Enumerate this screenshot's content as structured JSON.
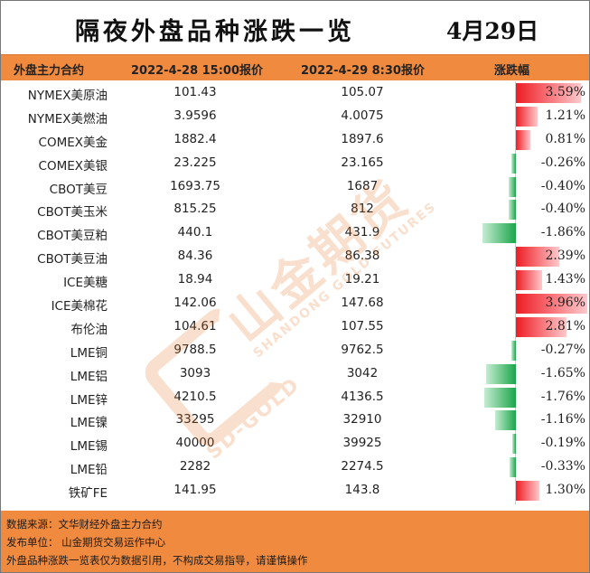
{
  "title": "隔夜外盘品种涨跌一览",
  "date": "4月29日",
  "header": {
    "name": "外盘主力合约",
    "price1": "2022-4-28 15:00报价",
    "price2": "2022-4-29 8:30报价",
    "change": "涨跌幅"
  },
  "rows": [
    {
      "name": "NYMEX美原油",
      "p1": "101.43",
      "p2": "105.07",
      "chg": "3.59%",
      "pct": 3.59
    },
    {
      "name": "NYMEX美燃油",
      "p1": "3.9596",
      "p2": "4.0075",
      "chg": "1.21%",
      "pct": 1.21
    },
    {
      "name": "COMEX美金",
      "p1": "1882.4",
      "p2": "1897.6",
      "chg": "0.81%",
      "pct": 0.81
    },
    {
      "name": "COMEX美银",
      "p1": "23.225",
      "p2": "23.165",
      "chg": "-0.26%",
      "pct": -0.26
    },
    {
      "name": "CBOT美豆",
      "p1": "1693.75",
      "p2": "1687",
      "chg": "-0.40%",
      "pct": -0.4
    },
    {
      "name": "CBOT美玉米",
      "p1": "815.25",
      "p2": "812",
      "chg": "-0.40%",
      "pct": -0.4
    },
    {
      "name": "CBOT美豆粕",
      "p1": "440.1",
      "p2": "431.9",
      "chg": "-1.86%",
      "pct": -1.86
    },
    {
      "name": "CBOT美豆油",
      "p1": "84.36",
      "p2": "86.38",
      "chg": "2.39%",
      "pct": 2.39
    },
    {
      "name": "ICE美糖",
      "p1": "18.94",
      "p2": "19.21",
      "chg": "1.43%",
      "pct": 1.43
    },
    {
      "name": "ICE美棉花",
      "p1": "142.06",
      "p2": "147.68",
      "chg": "3.96%",
      "pct": 3.96
    },
    {
      "name": "布伦油",
      "p1": "104.61",
      "p2": "107.55",
      "chg": "2.81%",
      "pct": 2.81
    },
    {
      "name": "LME铜",
      "p1": "9788.5",
      "p2": "9762.5",
      "chg": "-0.27%",
      "pct": -0.27
    },
    {
      "name": "LME铝",
      "p1": "3093",
      "p2": "3042",
      "chg": "-1.65%",
      "pct": -1.65
    },
    {
      "name": "LME锌",
      "p1": "4210.5",
      "p2": "4136.5",
      "chg": "-1.76%",
      "pct": -1.76
    },
    {
      "name": "LME镍",
      "p1": "33295",
      "p2": "32910",
      "chg": "-1.16%",
      "pct": -1.16
    },
    {
      "name": "LME锡",
      "p1": "40000",
      "p2": "39925",
      "chg": "-0.19%",
      "pct": -0.19
    },
    {
      "name": "LME铅",
      "p1": "2282",
      "p2": "2274.5",
      "chg": "-0.33%",
      "pct": -0.33
    },
    {
      "name": "铁矿FE",
      "p1": "141.95",
      "p2": "143.8",
      "chg": "1.30%",
      "pct": 1.3
    }
  ],
  "footer": {
    "source": "数据来源：文华财经外盘主力合约",
    "publisher": "发布单位：  山金期货交易运作中心",
    "disclaimer": "外盘品种涨跌一览表仅为数据引用，不构成交易指导，请谨慎操作"
  },
  "watermark": {
    "cn": "山金期货",
    "en_sub": "SHANDONG GOLD FUTURES",
    "en": "SD-GOLD"
  },
  "colors": {
    "header_bg": "#f08a3e",
    "positive": "#ee1c24",
    "negative": "#1aa64a"
  }
}
